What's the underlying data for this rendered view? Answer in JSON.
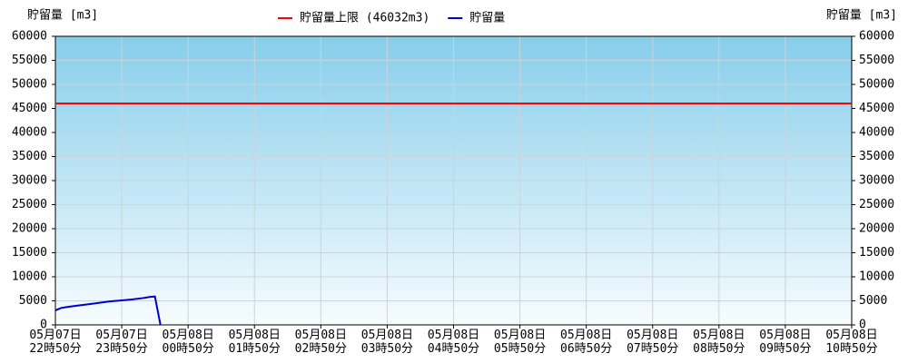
{
  "chart_data": {
    "type": "line",
    "y_label": "貯留量 [m3]",
    "y2_label": "貯留量 [m3]",
    "xticks": [
      "05月07日\n22時50分",
      "05月07日\n23時50分",
      "05月08日\n00時50分",
      "05月08日\n01時50分",
      "05月08日\n02時50分",
      "05月08日\n03時50分",
      "05月08日\n04時50分",
      "05月08日\n05時50分",
      "05月08日\n06時50分",
      "05月08日\n07時50分",
      "05月08日\n08時50分",
      "05月08日\n09時50分",
      "05月08日\n10時50分"
    ],
    "xlim": [
      "05月07日\n22時50分",
      "05月08日\n10時50分"
    ],
    "ylim": [
      0,
      60000
    ],
    "yticks": [
      0,
      5000,
      10000,
      15000,
      20000,
      25000,
      30000,
      35000,
      40000,
      45000,
      50000,
      55000,
      60000
    ],
    "y2lim": [
      0,
      60000
    ],
    "y2ticks": [
      0,
      5000,
      10000,
      15000,
      20000,
      25000,
      30000,
      35000,
      40000,
      45000,
      50000,
      55000,
      60000
    ],
    "grid": true,
    "legend": "top",
    "series": [
      {
        "name": "貯留量上限 (46032m3)",
        "color": "#ff0000",
        "x": [
          "05月07日\n22時50分",
          "05月08日\n10時50分"
        ],
        "values": [
          46032,
          46032
        ]
      },
      {
        "name": "貯留量",
        "color": "#0000cc",
        "x": [
          "05月07日\n22時50分",
          "05月07日\n22時55分",
          "05月07日\n23時00分",
          "05月07日\n23時10分",
          "05月07日\n23時20分",
          "05月07日\n23時30分",
          "05月07日\n23時40分",
          "05月07日\n23時50分",
          "05月08日\n00時00分",
          "05月08日\n00時10分",
          "05月08日\n00時15分",
          "05月08日\n00時20分",
          "05月08日\n00時25分"
        ],
        "values": [
          3000,
          3500,
          3700,
          4000,
          4300,
          4600,
          4900,
          5100,
          5300,
          5600,
          5800,
          5900,
          0
        ]
      }
    ]
  }
}
